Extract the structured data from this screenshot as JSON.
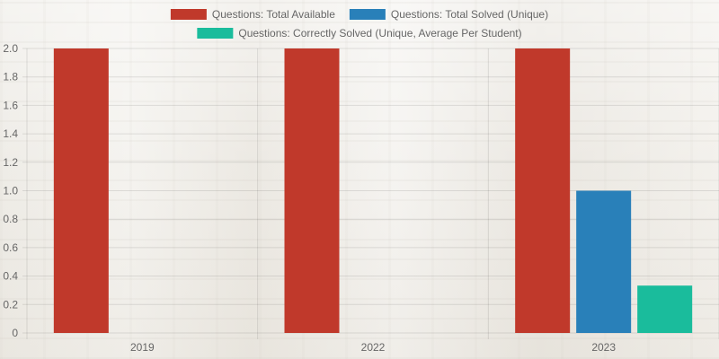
{
  "chart_data": {
    "type": "bar",
    "categories": [
      "2019",
      "2022",
      "2023"
    ],
    "series": [
      {
        "name": "Questions: Total Available",
        "color": "#c0392b",
        "values": [
          2,
          2,
          2
        ]
      },
      {
        "name": "Questions: Total Solved (Unique)",
        "color": "#2980b9",
        "values": [
          0,
          0,
          1
        ]
      },
      {
        "name": "Questions: Correctly Solved (Unique, Average Per Student)",
        "color": "#1abc9c",
        "values": [
          0,
          0,
          0.333
        ]
      }
    ],
    "ylim": [
      0,
      2
    ],
    "yticks": [
      "0",
      "0.2",
      "0.4",
      "0.6",
      "0.8",
      "1.0",
      "1.2",
      "1.4",
      "1.6",
      "1.8",
      "2.0"
    ],
    "grid": true,
    "legend": "top"
  }
}
